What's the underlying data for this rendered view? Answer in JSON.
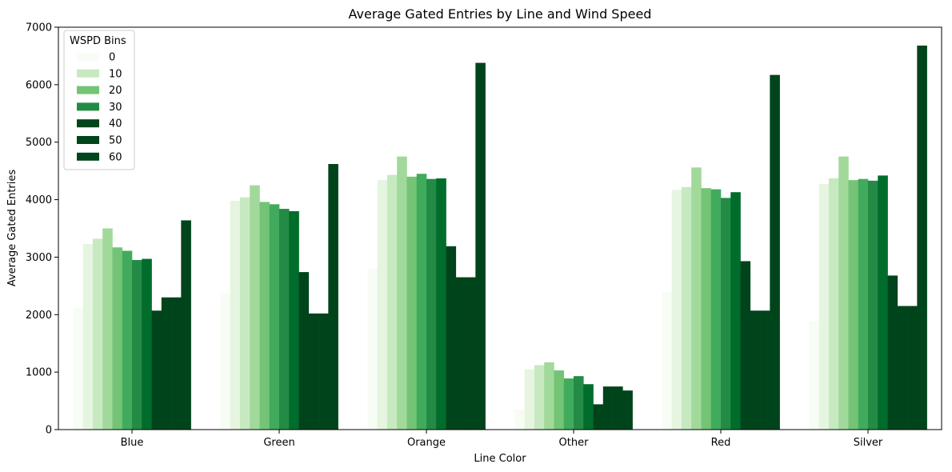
{
  "chart_data": {
    "type": "bar",
    "title": "Average Gated Entries by Line and Wind Speed",
    "xlabel": "Line Color",
    "ylabel": "Average Gated Entries",
    "ylim": [
      0,
      7000
    ],
    "yticks": [
      "0",
      "1000",
      "2000",
      "3000",
      "4000",
      "5000",
      "6000",
      "7000"
    ],
    "categories": [
      "Blue",
      "Green",
      "Orange",
      "Other",
      "Red",
      "Silver"
    ],
    "grid": false,
    "legend": {
      "title": "WSPD Bins",
      "position": "top-left"
    },
    "series_colors": [
      "#f7fcf5",
      "#e5f5e0",
      "#c7e9c0",
      "#a1d99b",
      "#74c476",
      "#41ab5d",
      "#238b45",
      "#006d2c",
      "#00441b"
    ],
    "series": [
      {
        "name": "0",
        "values": [
          2120,
          2370,
          2800,
          350,
          2390,
          1890
        ]
      },
      {
        "name": "",
        "values": [
          3230,
          3980,
          4340,
          1050,
          4170,
          4270
        ]
      },
      {
        "name": "10",
        "values": [
          3320,
          4040,
          4430,
          1120,
          4220,
          4370
        ]
      },
      {
        "name": "",
        "values": [
          3500,
          4250,
          4750,
          1170,
          4560,
          4750
        ]
      },
      {
        "name": "20",
        "values": [
          3170,
          3960,
          4400,
          1030,
          4200,
          4340
        ]
      },
      {
        "name": "",
        "values": [
          3110,
          3920,
          4450,
          890,
          4180,
          4360
        ]
      },
      {
        "name": "30",
        "values": [
          2950,
          3840,
          4360,
          930,
          4030,
          4330
        ]
      },
      {
        "name": "",
        "values": [
          2970,
          3800,
          4370,
          790,
          4130,
          4420
        ]
      },
      {
        "name": "40",
        "values": [
          2070,
          2740,
          3190,
          440,
          2930,
          2680
        ]
      },
      {
        "name": "",
        "values": [
          2300,
          2020,
          2650,
          750,
          2070,
          2150
        ]
      },
      {
        "name": "50",
        "values": [
          2300,
          2020,
          2650,
          750,
          2070,
          2150
        ]
      },
      {
        "name": "60",
        "values": [
          3640,
          4620,
          6380,
          680,
          6170,
          6680
        ]
      }
    ]
  }
}
